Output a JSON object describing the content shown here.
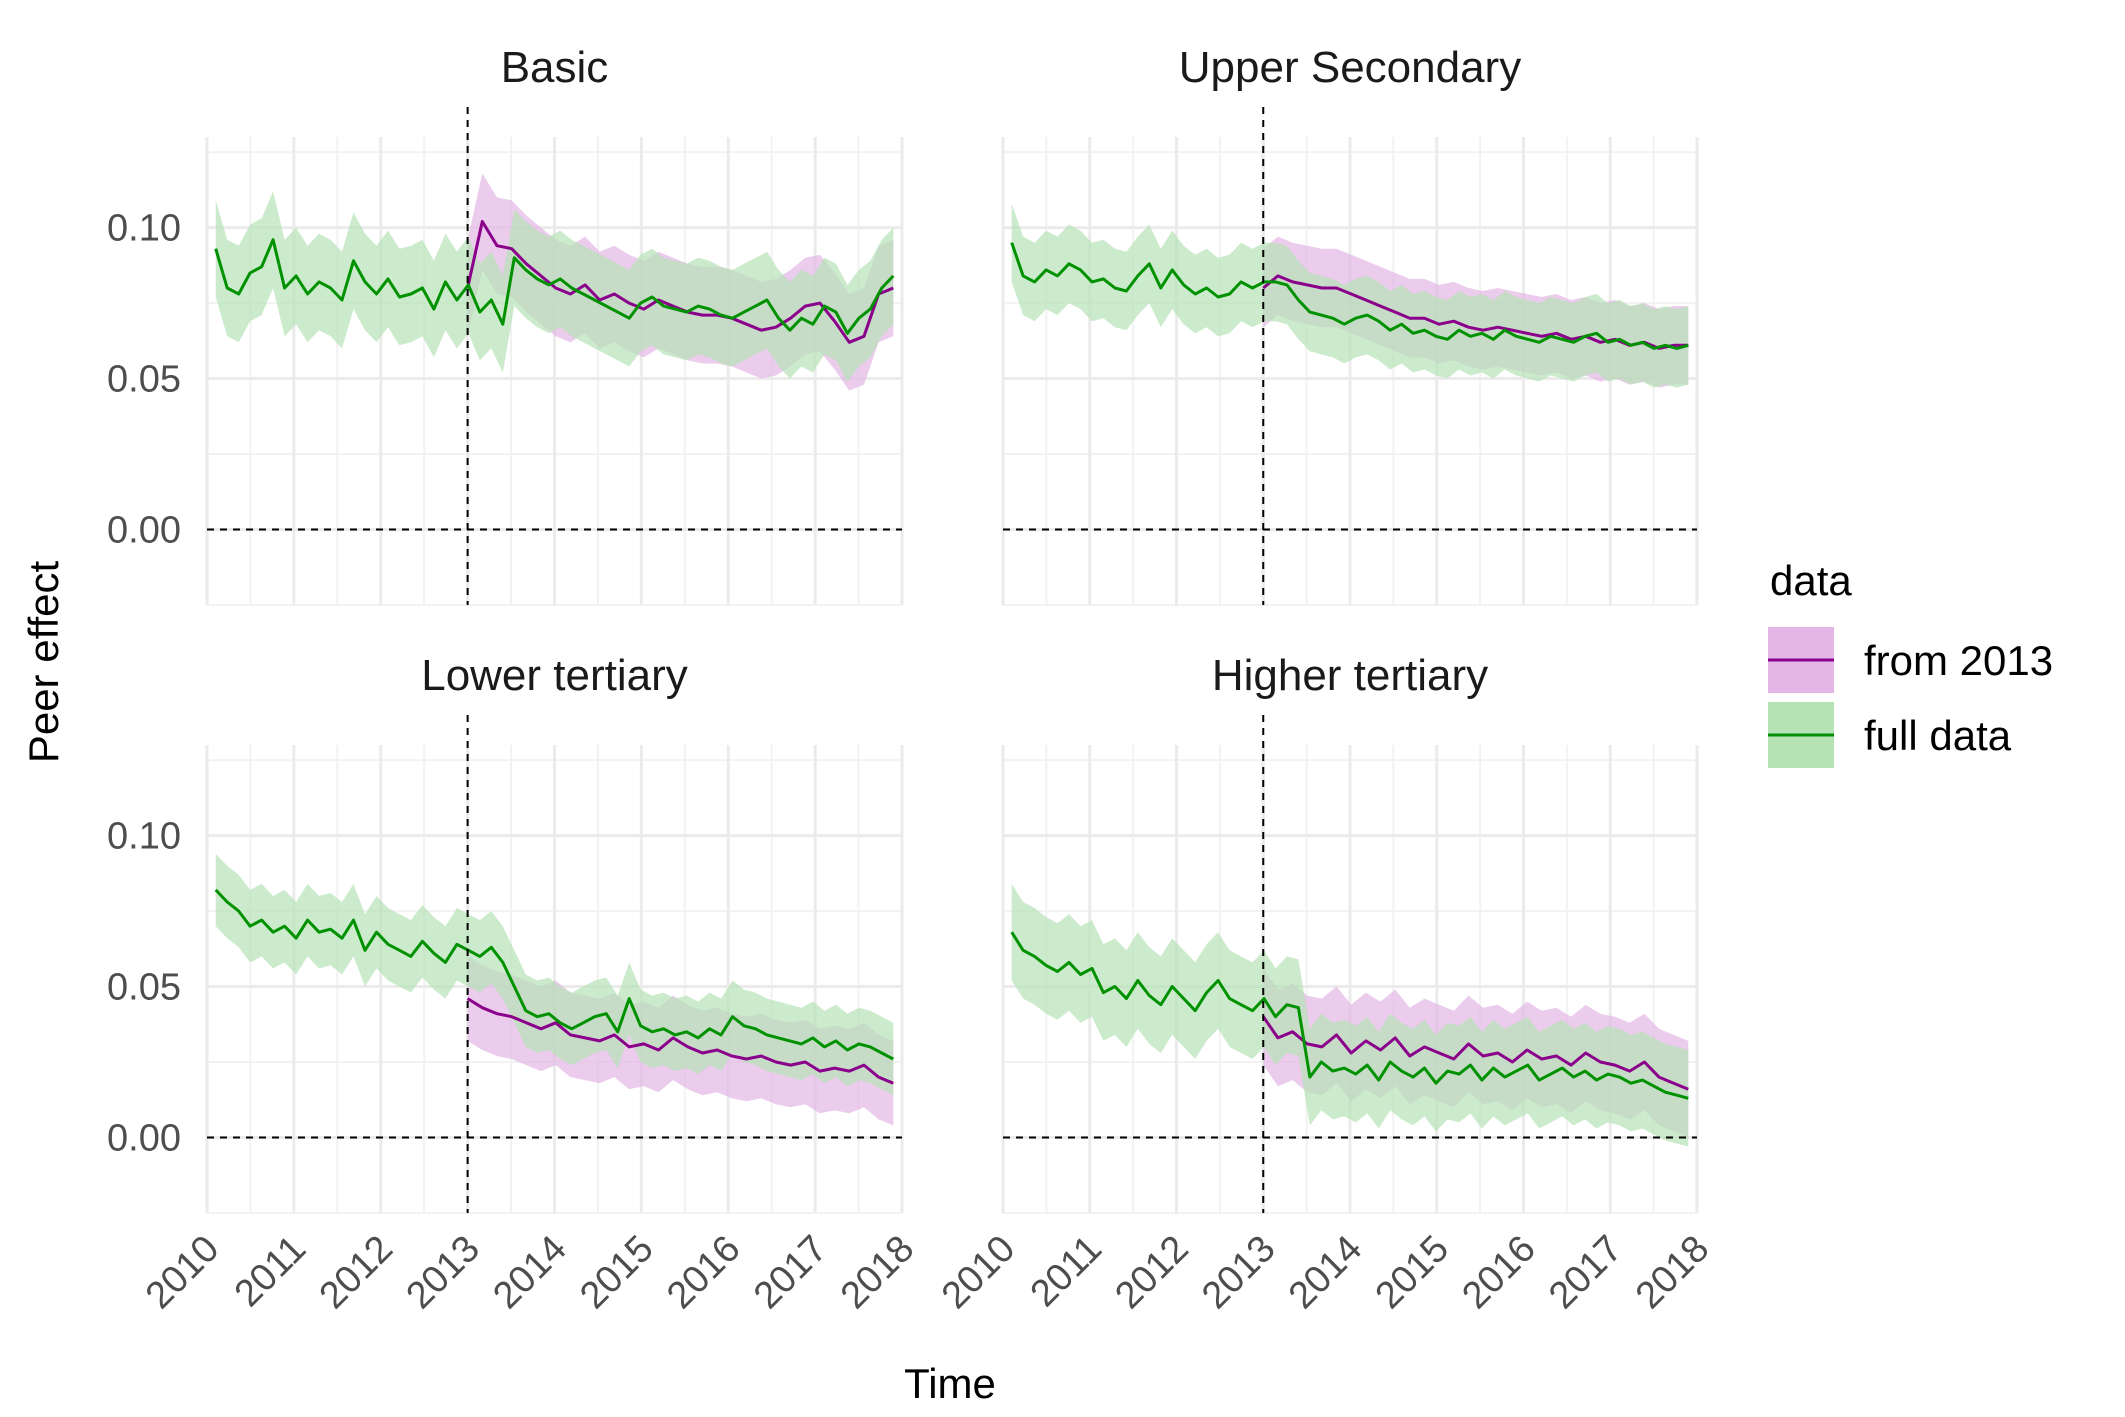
{
  "chart_data": {
    "type": "line",
    "xlabel": "Time",
    "ylabel": "Peer effect",
    "xlim": [
      2010,
      2018
    ],
    "ylim": [
      -0.025,
      0.13
    ],
    "x_ticks": [
      "2010",
      "2011",
      "2012",
      "2013",
      "2014",
      "2015",
      "2016",
      "2017",
      "2018"
    ],
    "y_ticks": [
      "0.00",
      "0.05",
      "0.10"
    ],
    "reference_lines": {
      "vertical_x": 2013,
      "horizontal_y": 0.0
    },
    "grid": true,
    "legend": {
      "title": "data",
      "position": "right",
      "entries": [
        {
          "label": "from 2013",
          "line_color": "#8b008b",
          "fill_color": "#e3b6e6"
        },
        {
          "label": "full data",
          "line_color": "#009100",
          "fill_color": "#b6e3b6"
        }
      ]
    },
    "panels": [
      {
        "title": "Basic",
        "series": [
          {
            "name": "from 2013",
            "x_start": 2013,
            "x_end": 2017.9,
            "values": [
              0.08,
              0.102,
              0.094,
              0.093,
              0.088,
              0.084,
              0.08,
              0.078,
              0.081,
              0.076,
              0.078,
              0.075,
              0.073,
              0.076,
              0.074,
              0.072,
              0.071,
              0.071,
              0.07,
              0.068,
              0.066,
              0.067,
              0.07,
              0.074,
              0.075,
              0.069,
              0.062,
              0.064,
              0.078,
              0.08
            ],
            "band_width": 0.016
          },
          {
            "name": "full data",
            "x_start": 2010.1,
            "x_end": 2017.9,
            "values": [
              0.093,
              0.08,
              0.078,
              0.085,
              0.087,
              0.096,
              0.08,
              0.084,
              0.078,
              0.082,
              0.08,
              0.076,
              0.089,
              0.082,
              0.078,
              0.083,
              0.077,
              0.078,
              0.08,
              0.073,
              0.082,
              0.076,
              0.081,
              0.072,
              0.076,
              0.068,
              0.09,
              0.086,
              0.083,
              0.081,
              0.083,
              0.08,
              0.078,
              0.076,
              0.074,
              0.072,
              0.07,
              0.075,
              0.077,
              0.074,
              0.073,
              0.072,
              0.074,
              0.073,
              0.071,
              0.07,
              0.072,
              0.074,
              0.076,
              0.07,
              0.066,
              0.07,
              0.068,
              0.074,
              0.072,
              0.065,
              0.07,
              0.073,
              0.08,
              0.084
            ],
            "band_width": 0.016
          }
        ]
      },
      {
        "title": "Upper Secondary",
        "series": [
          {
            "name": "from 2013",
            "x_start": 2013,
            "x_end": 2017.9,
            "values": [
              0.08,
              0.084,
              0.082,
              0.081,
              0.08,
              0.08,
              0.078,
              0.076,
              0.074,
              0.072,
              0.07,
              0.07,
              0.068,
              0.069,
              0.067,
              0.066,
              0.067,
              0.066,
              0.065,
              0.064,
              0.065,
              0.063,
              0.064,
              0.062,
              0.063,
              0.061,
              0.062,
              0.06,
              0.061,
              0.061
            ],
            "band_width": 0.013
          },
          {
            "name": "full data",
            "x_start": 2010.1,
            "x_end": 2017.9,
            "values": [
              0.095,
              0.084,
              0.082,
              0.086,
              0.084,
              0.088,
              0.086,
              0.082,
              0.083,
              0.08,
              0.079,
              0.084,
              0.088,
              0.08,
              0.086,
              0.081,
              0.078,
              0.08,
              0.077,
              0.078,
              0.082,
              0.08,
              0.082,
              0.082,
              0.081,
              0.076,
              0.072,
              0.071,
              0.07,
              0.068,
              0.07,
              0.071,
              0.069,
              0.066,
              0.068,
              0.065,
              0.066,
              0.064,
              0.063,
              0.066,
              0.064,
              0.065,
              0.063,
              0.066,
              0.064,
              0.063,
              0.062,
              0.064,
              0.063,
              0.062,
              0.064,
              0.065,
              0.062,
              0.063,
              0.061,
              0.062,
              0.06,
              0.061,
              0.06,
              0.061
            ],
            "band_width": 0.013
          }
        ]
      },
      {
        "title": "Lower tertiary",
        "series": [
          {
            "name": "from 2013",
            "x_start": 2013,
            "x_end": 2017.9,
            "values": [
              0.046,
              0.043,
              0.041,
              0.04,
              0.038,
              0.036,
              0.038,
              0.034,
              0.033,
              0.032,
              0.034,
              0.03,
              0.031,
              0.029,
              0.033,
              0.03,
              0.028,
              0.029,
              0.027,
              0.026,
              0.027,
              0.025,
              0.024,
              0.025,
              0.022,
              0.023,
              0.022,
              0.024,
              0.02,
              0.018
            ],
            "band_width": 0.014
          },
          {
            "name": "full data",
            "x_start": 2010.1,
            "x_end": 2017.9,
            "values": [
              0.082,
              0.078,
              0.075,
              0.07,
              0.072,
              0.068,
              0.07,
              0.066,
              0.072,
              0.068,
              0.069,
              0.066,
              0.072,
              0.062,
              0.068,
              0.064,
              0.062,
              0.06,
              0.065,
              0.061,
              0.058,
              0.064,
              0.062,
              0.06,
              0.063,
              0.058,
              0.05,
              0.042,
              0.04,
              0.041,
              0.038,
              0.036,
              0.038,
              0.04,
              0.041,
              0.035,
              0.046,
              0.037,
              0.035,
              0.036,
              0.034,
              0.035,
              0.033,
              0.036,
              0.034,
              0.04,
              0.037,
              0.036,
              0.034,
              0.033,
              0.032,
              0.031,
              0.033,
              0.03,
              0.032,
              0.029,
              0.031,
              0.03,
              0.028,
              0.026
            ],
            "band_width": 0.012
          }
        ]
      },
      {
        "title": "Higher tertiary",
        "series": [
          {
            "name": "from 2013",
            "x_start": 2013,
            "x_end": 2017.9,
            "values": [
              0.04,
              0.033,
              0.035,
              0.031,
              0.03,
              0.034,
              0.028,
              0.032,
              0.029,
              0.033,
              0.027,
              0.03,
              0.028,
              0.026,
              0.031,
              0.027,
              0.028,
              0.025,
              0.029,
              0.026,
              0.027,
              0.024,
              0.028,
              0.025,
              0.024,
              0.022,
              0.025,
              0.02,
              0.018,
              0.016
            ],
            "band_width": 0.016
          },
          {
            "name": "full data",
            "x_start": 2010.1,
            "x_end": 2017.9,
            "values": [
              0.068,
              0.062,
              0.06,
              0.057,
              0.055,
              0.058,
              0.054,
              0.056,
              0.048,
              0.05,
              0.046,
              0.052,
              0.047,
              0.044,
              0.05,
              0.046,
              0.042,
              0.048,
              0.052,
              0.046,
              0.044,
              0.042,
              0.046,
              0.04,
              0.044,
              0.043,
              0.02,
              0.025,
              0.022,
              0.023,
              0.021,
              0.024,
              0.019,
              0.025,
              0.022,
              0.02,
              0.023,
              0.018,
              0.022,
              0.021,
              0.024,
              0.019,
              0.023,
              0.02,
              0.022,
              0.024,
              0.019,
              0.021,
              0.023,
              0.02,
              0.022,
              0.019,
              0.021,
              0.02,
              0.018,
              0.019,
              0.017,
              0.015,
              0.014,
              0.013
            ],
            "band_width": 0.016
          }
        ]
      }
    ]
  }
}
